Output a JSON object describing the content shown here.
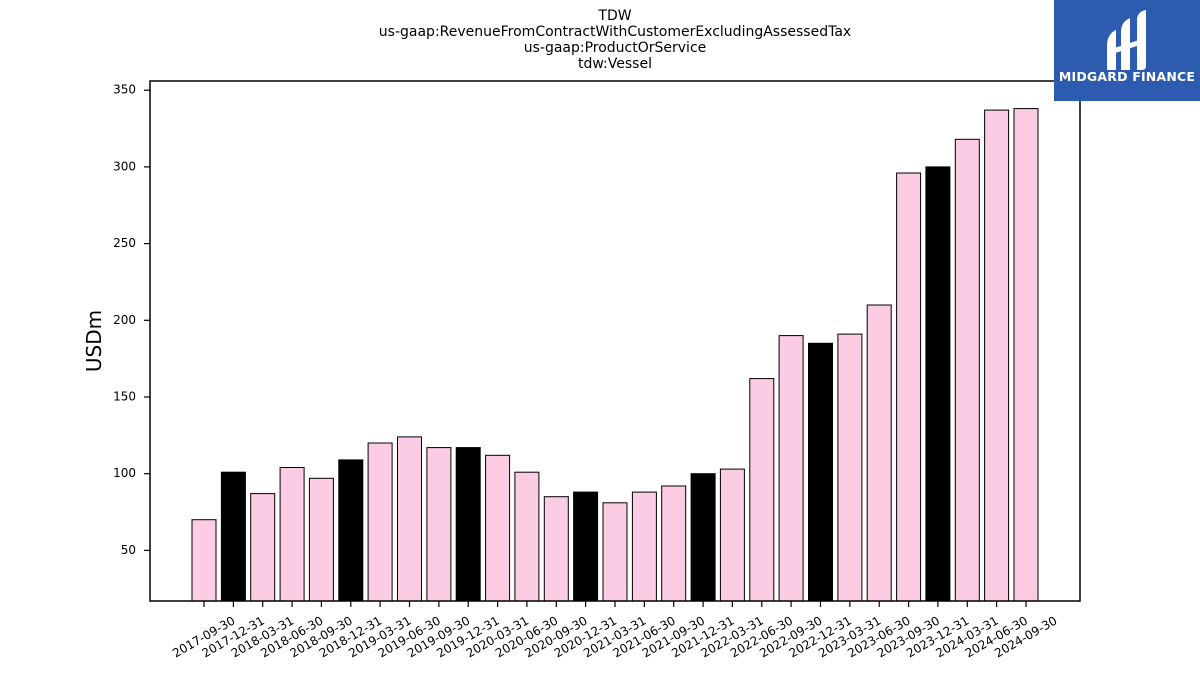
{
  "chart_data": {
    "type": "bar",
    "title_lines": [
      "TDW",
      "us-gaap:RevenueFromContractWithCustomerExcludingAssessedTax",
      "us-gaap:ProductOrService",
      "tdw:Vessel"
    ],
    "xlabel": "",
    "ylabel": "USDm",
    "ylim": [
      17,
      356
    ],
    "yticks": [
      50,
      100,
      150,
      200,
      250,
      300,
      350
    ],
    "grid": false,
    "categories": [
      "2017-09-30",
      "2017-12-31",
      "2018-03-31",
      "2018-06-30",
      "2018-09-30",
      "2018-12-31",
      "2019-03-31",
      "2019-06-30",
      "2019-09-30",
      "2019-12-31",
      "2020-03-31",
      "2020-06-30",
      "2020-09-30",
      "2020-12-31",
      "2021-03-31",
      "2021-06-30",
      "2021-09-30",
      "2021-12-31",
      "2022-03-31",
      "2022-06-30",
      "2022-09-30",
      "2022-12-31",
      "2023-03-31",
      "2023-06-30",
      "2023-09-30",
      "2023-12-31",
      "2024-03-31",
      "2024-06-30",
      "2024-09-30"
    ],
    "values": [
      70,
      101,
      87,
      104,
      97,
      109,
      120,
      124,
      117,
      117,
      112,
      101,
      85,
      88,
      81,
      88,
      92,
      100,
      103,
      162,
      190,
      185,
      191,
      210,
      296,
      300,
      318,
      337,
      338
    ],
    "colors": {
      "quarter": "#fccbe4",
      "year_end": "#000000",
      "edge": "#000000"
    }
  },
  "logo": {
    "text": "MIDGARD FINANCE",
    "background": "#2d5bb0"
  }
}
